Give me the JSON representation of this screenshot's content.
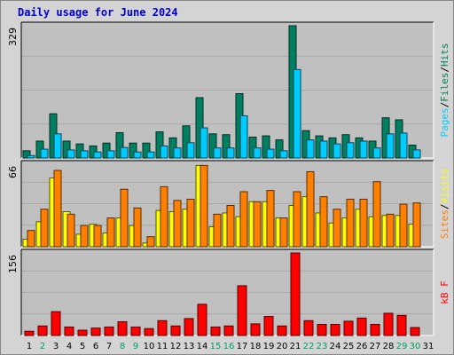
{
  "title": "Daily usage for June 2024",
  "colors": {
    "pages": "#00ccff",
    "files": "#008060",
    "visits": "#ffff00",
    "sites": "#ff8000",
    "kbf": "#ff0000",
    "weekend_label": "#00a060",
    "weekday_label": "#000000"
  },
  "chart_data": [
    {
      "type": "bar",
      "panel": "hits",
      "ymax_label": "329",
      "ylim": [
        0,
        329
      ],
      "categories": [
        "1",
        "2",
        "3",
        "4",
        "5",
        "6",
        "7",
        "8",
        "9",
        "10",
        "11",
        "12",
        "13",
        "14",
        "15",
        "16",
        "17",
        "18",
        "19",
        "20",
        "21",
        "22",
        "23",
        "24",
        "25",
        "26",
        "27",
        "28",
        "29",
        "30",
        "31"
      ],
      "weekend_days": [
        "2",
        "8",
        "9",
        "15",
        "16",
        "22",
        "23",
        "29",
        "30"
      ],
      "series_labels": {
        "pages": "Pages",
        "sep1": "/",
        "files": "Files",
        "sep2": "/",
        "hits": "Hits"
      },
      "series": [
        {
          "name": "Files",
          "values": [
            18,
            42,
            110,
            42,
            35,
            30,
            37,
            63,
            37,
            37,
            65,
            50,
            80,
            150,
            60,
            58,
            160,
            52,
            55,
            45,
            329,
            68,
            55,
            50,
            58,
            50,
            42,
            100,
            95,
            32,
            0
          ]
        },
        {
          "name": "Pages",
          "values": [
            6,
            22,
            60,
            20,
            18,
            15,
            18,
            26,
            15,
            15,
            30,
            25,
            38,
            75,
            25,
            25,
            105,
            25,
            22,
            18,
            220,
            45,
            42,
            35,
            38,
            42,
            25,
            60,
            62,
            20,
            0
          ]
        }
      ]
    },
    {
      "type": "bar",
      "panel": "visits",
      "ymax_label": "66",
      "ylim": [
        0,
        66
      ],
      "categories": [
        "1",
        "2",
        "3",
        "4",
        "5",
        "6",
        "7",
        "8",
        "9",
        "10",
        "11",
        "12",
        "13",
        "14",
        "15",
        "16",
        "17",
        "18",
        "19",
        "20",
        "21",
        "22",
        "23",
        "24",
        "25",
        "26",
        "27",
        "28",
        "29",
        "30",
        "31"
      ],
      "series_labels": {
        "sites": "Sites",
        "sep1": "/",
        "visits": "Visits"
      },
      "series": [
        {
          "name": "Visits",
          "values": [
            6,
            20,
            55,
            28,
            10,
            18,
            11,
            23,
            17,
            3,
            29,
            28,
            30,
            65,
            16,
            27,
            24,
            36,
            36,
            23,
            33,
            40,
            27,
            19,
            23,
            30,
            24,
            25,
            25,
            18,
            0
          ]
        },
        {
          "name": "Sites",
          "values": [
            13,
            30,
            61,
            26,
            17,
            17,
            23,
            46,
            31,
            8,
            48,
            37,
            38,
            65,
            26,
            33,
            44,
            36,
            45,
            23,
            44,
            60,
            40,
            30,
            38,
            38,
            52,
            26,
            34,
            35,
            0
          ]
        }
      ]
    },
    {
      "type": "bar",
      "panel": "kbytes",
      "ymax_label": "156",
      "ylim": [
        0,
        156
      ],
      "categories": [
        "1",
        "2",
        "3",
        "4",
        "5",
        "6",
        "7",
        "8",
        "9",
        "10",
        "11",
        "12",
        "13",
        "14",
        "15",
        "16",
        "17",
        "18",
        "19",
        "20",
        "21",
        "22",
        "23",
        "24",
        "25",
        "26",
        "27",
        "28",
        "29",
        "30",
        "31"
      ],
      "series_labels": {
        "kbf": "kB F"
      },
      "series": [
        {
          "name": "kB F",
          "values": [
            8,
            18,
            45,
            16,
            10,
            14,
            16,
            26,
            16,
            13,
            28,
            18,
            32,
            59,
            16,
            18,
            94,
            22,
            36,
            18,
            156,
            28,
            21,
            21,
            27,
            33,
            21,
            42,
            38,
            15,
            0
          ]
        }
      ]
    }
  ]
}
